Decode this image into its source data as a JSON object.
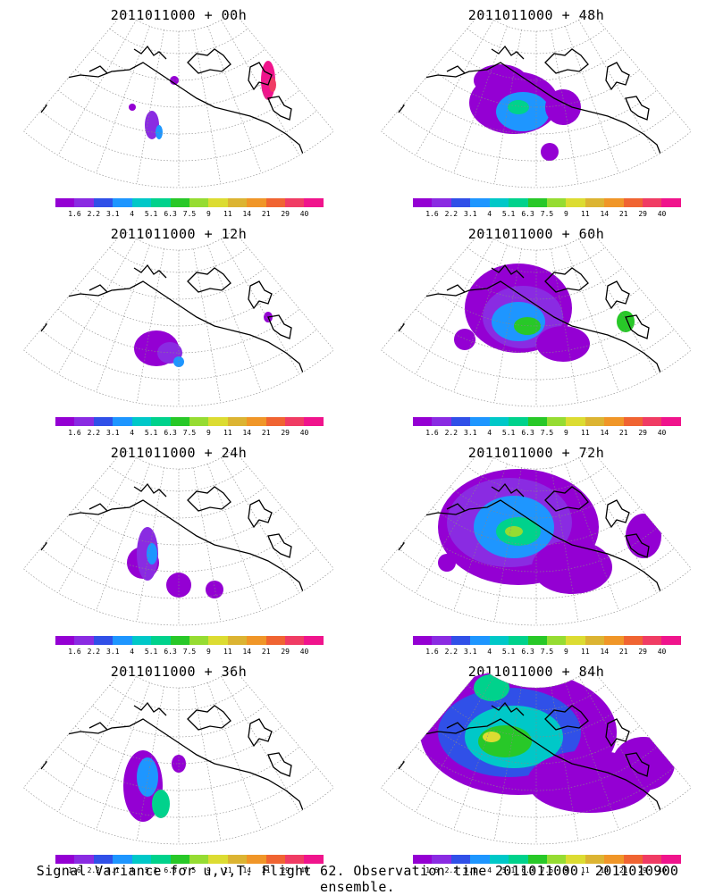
{
  "colors": [
    "#9400d3",
    "#8a2be2",
    "#3050e8",
    "#1e96ff",
    "#00c8c8",
    "#00d28c",
    "#28c828",
    "#96dc32",
    "#dcdc32",
    "#dcb432",
    "#f09628",
    "#f06432",
    "#f03c64",
    "#f0148c"
  ],
  "colorbar_labels": [
    "1.6",
    "2.2",
    "3.1",
    "4",
    "5.1",
    "6.3",
    "7.5",
    "9",
    "11",
    "14",
    "21",
    "29",
    "40"
  ],
  "panels": [
    {
      "title": "2011011000 + 00h",
      "level": 0
    },
    {
      "title": "2011011000 + 48h",
      "level": 4
    },
    {
      "title": "2011011000 + 12h",
      "level": 1
    },
    {
      "title": "2011011000 + 60h",
      "level": 5
    },
    {
      "title": "2011011000 + 24h",
      "level": 2
    },
    {
      "title": "2011011000 + 72h",
      "level": 6
    },
    {
      "title": "2011011000 + 36h",
      "level": 3
    },
    {
      "title": "2011011000 + 84h",
      "level": 7
    }
  ],
  "footer": "Signal Variance for u,v,T. Flight 62. Observation time 2011011000. 2011010900 ensemble."
}
